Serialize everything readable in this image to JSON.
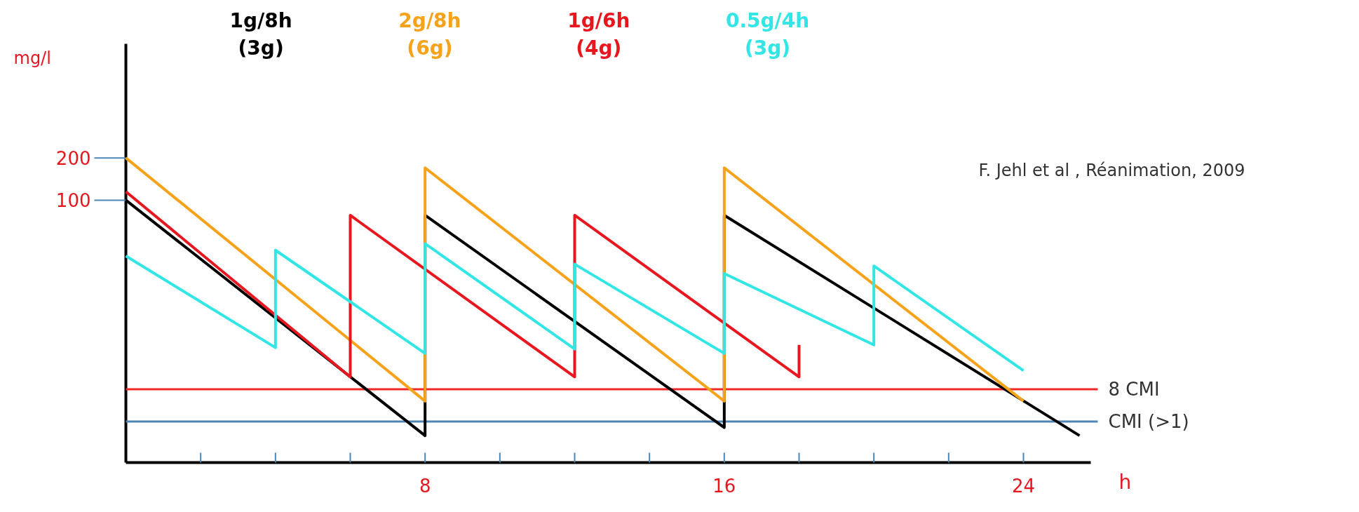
{
  "chart_data": {
    "type": "line",
    "xlabel": "h",
    "ylabel": "mg/l",
    "log": "y",
    "grid": false,
    "marker": "none",
    "line_style": "solid",
    "xlim": [
      0,
      25.8
    ],
    "ylim": [
      1.35,
      1300
    ],
    "xticks": [
      {
        "value": 2,
        "label": null
      },
      {
        "value": 4,
        "label": null
      },
      {
        "value": 6,
        "label": null
      },
      8,
      {
        "value": 10,
        "label": null
      },
      {
        "value": 12,
        "label": null
      },
      {
        "value": 14,
        "label": null
      },
      16,
      {
        "value": 18,
        "label": null
      },
      {
        "value": 20,
        "label": null
      },
      {
        "value": 22,
        "label": null
      },
      24
    ],
    "yticks": [
      100,
      200
    ],
    "series": [
      {
        "name": "1g/8h\n(3g)",
        "color": "#000000",
        "x": [
          0,
          8,
          8,
          16,
          16,
          25.5
        ],
        "values": [
          100,
          2.1,
          78,
          2.4,
          78,
          2.1
        ]
      },
      {
        "name": "2g/8h\n(6g)",
        "color": "#f7a21b",
        "x": [
          0,
          8,
          8,
          16,
          16,
          24
        ],
        "values": [
          200,
          3.7,
          170,
          3.7,
          170,
          3.7
        ]
      },
      {
        "name": "1g/6h\n(4g)",
        "color": "#e8171f",
        "x": [
          0,
          6,
          6,
          12,
          12,
          18,
          18
        ],
        "values": [
          115,
          5.5,
          78,
          5.5,
          78,
          5.5,
          9.3
        ]
      },
      {
        "name": "0.5g/4h\n(3g)",
        "color": "#33e6e6",
        "x": [
          0,
          4,
          4,
          8,
          8,
          12,
          12,
          16,
          16,
          20,
          20,
          24
        ],
        "values": [
          40,
          8.9,
          44,
          8.1,
          49,
          8.7,
          35,
          8.1,
          30,
          9.3,
          34,
          6.1
        ]
      }
    ],
    "ref_lines": [
      {
        "axis": "y",
        "value": 4.5,
        "label": "8 CMI",
        "color": "#f02828"
      },
      {
        "axis": "y",
        "value": 2.65,
        "label": "CMI (>1)",
        "color": "#4f86b8"
      }
    ],
    "annotations": [
      "F. Jehl et al , Réanimation, 2009"
    ]
  }
}
